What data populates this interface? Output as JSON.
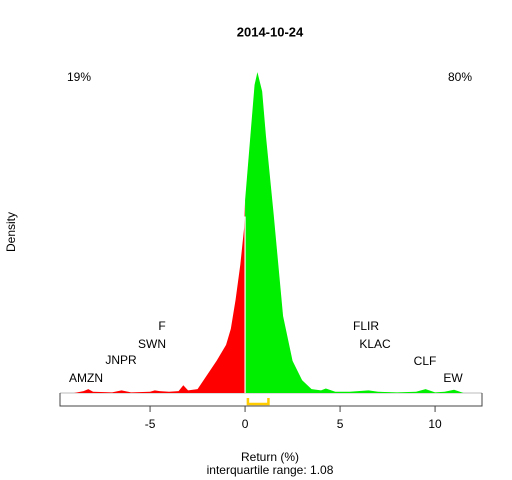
{
  "chart_data": {
    "type": "density",
    "title": "2014-10-24",
    "x_label": "Return (%)",
    "y_label": "Density",
    "subtitle": "interquartile range: 1.08",
    "share_labels": [
      {
        "text": "19%",
        "color": "#ff0000"
      },
      {
        "text": "80%",
        "color": "#00aa00"
      }
    ],
    "annotations": [
      "AMZN",
      "JNPR",
      "SWN",
      "F",
      "FLIR",
      "KLAC",
      "CLF",
      "EW"
    ],
    "x": [
      -9,
      -8.5,
      -8.25,
      -8,
      -7,
      -6.5,
      -6,
      -5,
      -4.75,
      -4.5,
      -4,
      -3.5,
      -3.25,
      -3,
      -2.5,
      -2,
      -1.5,
      -1,
      -0.75,
      -0.5,
      -0.25,
      -0.05,
      0,
      0.25,
      0.5,
      0.65,
      0.9,
      1.1,
      1.5,
      2,
      2.5,
      3,
      3.5,
      4,
      4.25,
      4.75,
      5.5,
      6.5,
      7,
      8,
      9,
      9.5,
      10,
      10.5,
      11,
      11.5
    ],
    "values": [
      0,
      0.003,
      0.006,
      0.002,
      0.001,
      0.004,
      0.001,
      0.002,
      0.004,
      0.003,
      0.002,
      0.003,
      0.012,
      0.004,
      0.006,
      0.028,
      0.05,
      0.075,
      0.1,
      0.145,
      0.2,
      0.257,
      0.3,
      0.39,
      0.48,
      0.5,
      0.47,
      0.4,
      0.28,
      0.12,
      0.05,
      0.02,
      0.006,
      0.004,
      0.007,
      0.002,
      0.002,
      0.004,
      0.002,
      0.001,
      0.002,
      0.006,
      0.001,
      0.002,
      0.005,
      0
    ],
    "split": 0,
    "negative_color": "#ff0000",
    "positive_color": "#00ee00",
    "quartiles": [
      0.15,
      1.23
    ],
    "quartile_color": "#ffcc00",
    "xlim": [
      -9.74,
      12.47
    ],
    "ylim": [
      0,
      0.55
    ],
    "xticks": [
      -5,
      0,
      5,
      10
    ]
  }
}
